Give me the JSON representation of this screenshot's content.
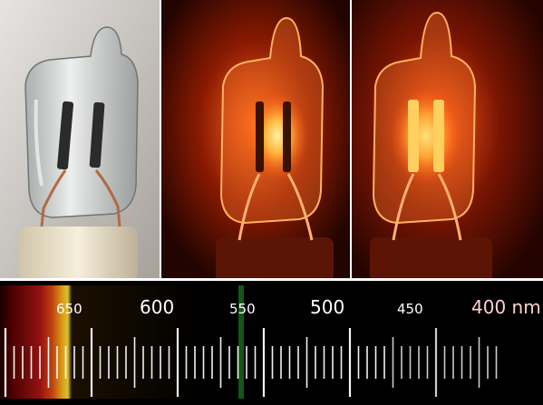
{
  "spectrum": {
    "scale_labels": [
      {
        "text": "650"
      },
      {
        "text": "600"
      },
      {
        "text": "550"
      },
      {
        "text": "500"
      },
      {
        "text": "450"
      },
      {
        "text": "400 nm"
      }
    ]
  },
  "colors": {
    "glass": "#e8ece9",
    "electrode": "#2b2b2b",
    "base": "#efe6cf",
    "glow_core": "#ffd25a",
    "glow_outer": "#ff4a10",
    "scale_line": "#ffffff"
  }
}
